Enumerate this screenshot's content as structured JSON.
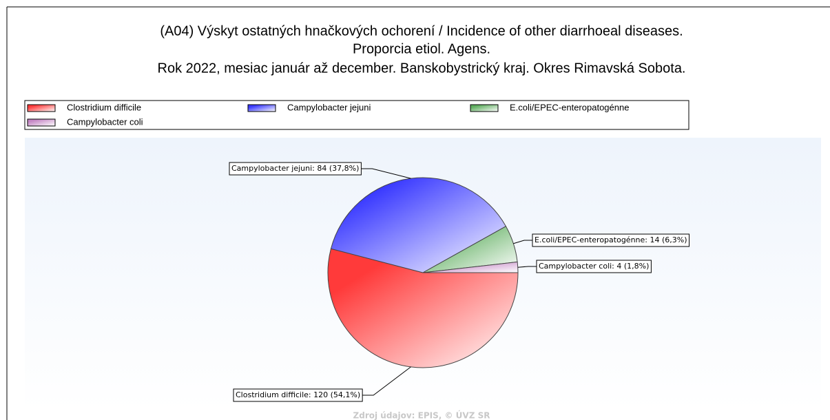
{
  "chart_data": {
    "type": "pie",
    "title": [
      "(A04) Výskyt ostatných hnačkových ochorení / Incidence of other diarrhoeal diseases.",
      "Proporcia etiol. Agens.",
      "Rok 2022, mesiac január až december. Banskobystrický kraj. Okres Rimavská Sobota."
    ],
    "categories": [
      "Clostridium difficile",
      "Campylobacter jejuni",
      "E.coli/EPEC-enteropatogénne",
      "Campylobacter coli"
    ],
    "values": [
      120,
      84,
      14,
      4
    ],
    "value_labels": [
      "Clostridium difficile: 120 (54,1%)",
      "Campylobacter jejuni: 84 (37,8%)",
      "E.coli/EPEC-enteropatogénne: 14 (6,3%)",
      "Campylobacter coli: 4 (1,8%)"
    ],
    "colors": [
      "#ff3a3a",
      "#3a3aff",
      "#5fae5f",
      "#c485c4"
    ],
    "source": "Zdroj údajov: EPIS, © ÚVZ SR"
  }
}
